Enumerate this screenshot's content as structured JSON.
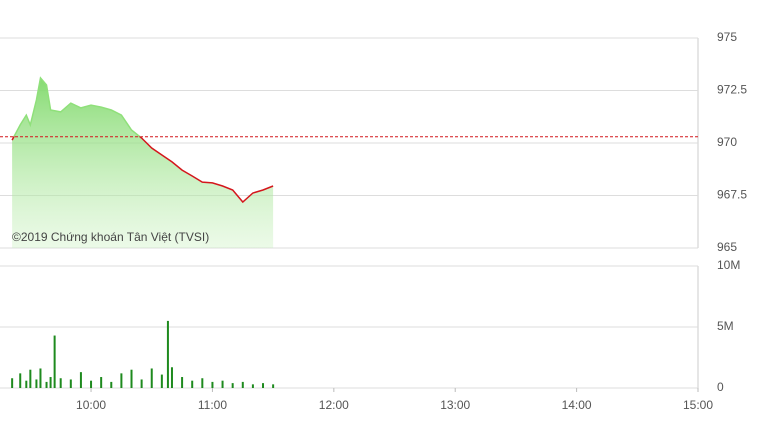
{
  "chart_data": [
    {
      "type": "line",
      "name": "price",
      "x": [
        "09:21",
        "09:25",
        "09:28",
        "09:30",
        "09:33",
        "09:35",
        "09:38",
        "09:40",
        "09:45",
        "09:50",
        "09:55",
        "10:00",
        "10:05",
        "10:10",
        "10:15",
        "10:20",
        "10:25",
        "10:30",
        "10:35",
        "10:40",
        "10:45",
        "10:50",
        "10:55",
        "11:00",
        "11:05",
        "11:10",
        "11:15",
        "11:20",
        "11:25",
        "11:30"
      ],
      "values": [
        970.14,
        970.86,
        971.33,
        970.86,
        972.05,
        973.1,
        972.76,
        971.57,
        971.48,
        971.9,
        971.67,
        971.8,
        971.71,
        971.57,
        971.33,
        970.62,
        970.24,
        969.76,
        969.43,
        969.1,
        968.71,
        968.43,
        968.14,
        968.1,
        967.95,
        967.76,
        967.19,
        967.62,
        967.76,
        967.95
      ],
      "reference": 970.3,
      "up_color": "#8fe07a",
      "down_color": "#d4161c",
      "xlim": [
        "09:15",
        "15:00"
      ],
      "ylim": [
        965,
        975
      ],
      "yticks": [
        965,
        967.5,
        970,
        972.5,
        975
      ],
      "annotation": "©2019 Chứng khoán Tân Việt (TVSI)",
      "grid": true
    },
    {
      "type": "bar",
      "name": "volume",
      "color": "#1e8a1e",
      "x": [
        "09:21",
        "09:25",
        "09:28",
        "09:30",
        "09:33",
        "09:35",
        "09:38",
        "09:40",
        "09:42",
        "09:45",
        "09:50",
        "09:55",
        "10:00",
        "10:05",
        "10:10",
        "10:15",
        "10:20",
        "10:25",
        "10:30",
        "10:35",
        "10:38",
        "10:40",
        "10:45",
        "10:50",
        "10:55",
        "11:00",
        "11:05",
        "11:10",
        "11:15",
        "11:20",
        "11:25",
        "11:30"
      ],
      "values": [
        800000,
        1200000,
        600000,
        1500000,
        700000,
        1600000,
        500000,
        900000,
        4300000,
        800000,
        700000,
        1300000,
        600000,
        900000,
        500000,
        1200000,
        1500000,
        700000,
        1600000,
        1100000,
        5500000,
        1700000,
        900000,
        600000,
        800000,
        500000,
        600000,
        400000,
        500000,
        300000,
        400000,
        300000
      ],
      "xlim": [
        "09:15",
        "15:00"
      ],
      "ylim": [
        0,
        10000000
      ],
      "yticks": [
        0,
        {
          "value": 5000000,
          "label": "5M"
        },
        {
          "value": 10000000,
          "label": "10M"
        }
      ],
      "xticks": [
        "10:00",
        "11:00",
        "12:00",
        "13:00",
        "14:00",
        "15:00"
      ],
      "grid": true
    }
  ]
}
